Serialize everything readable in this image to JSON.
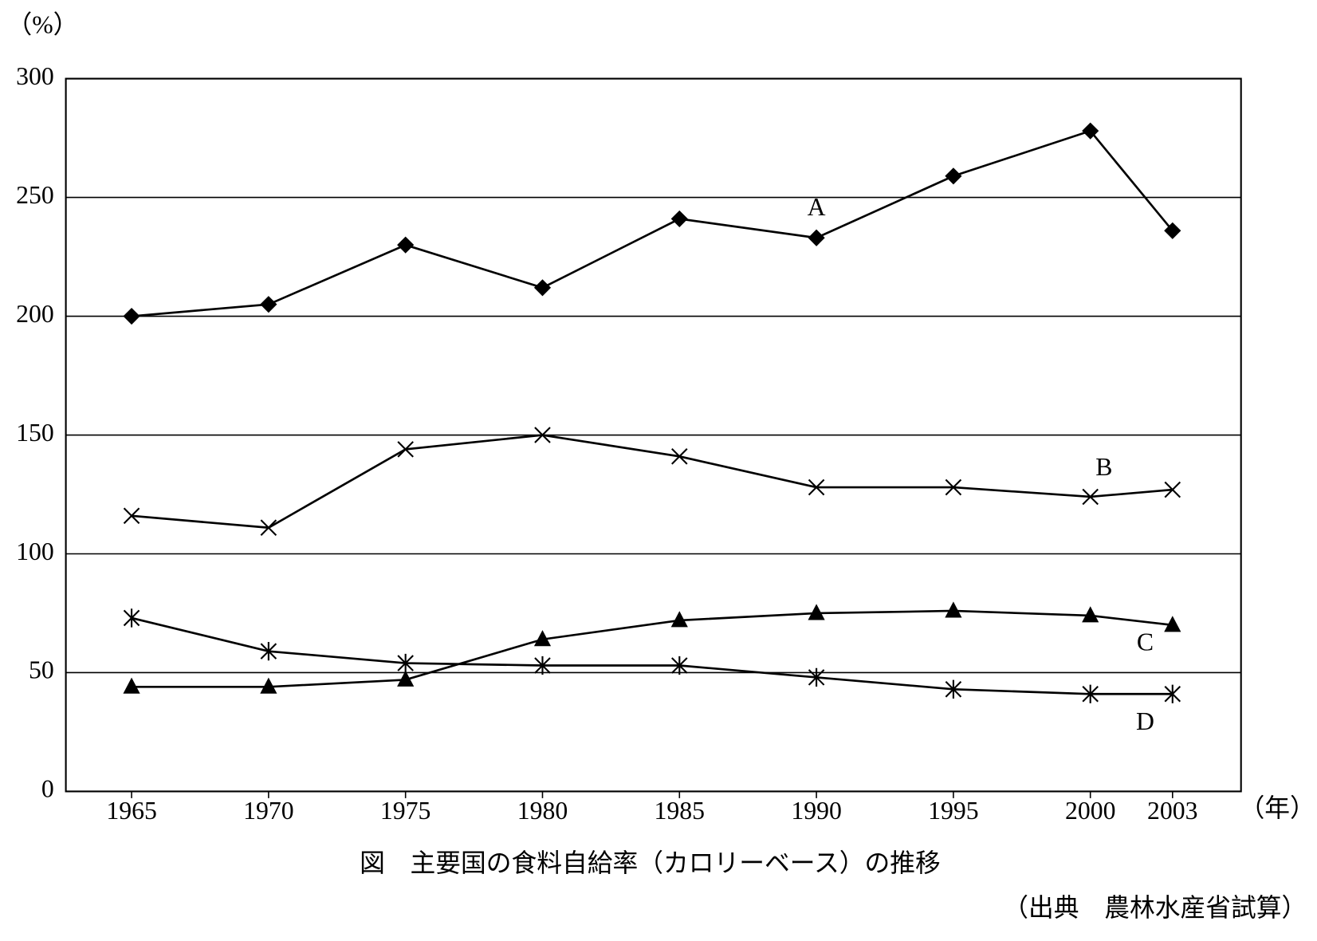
{
  "chart_data": {
    "type": "line",
    "title": "図　主要国の食料自給率（カロリーベース）の推移",
    "source": "（出典　農林水産省試算）",
    "y_label": "（%）",
    "x_label": "（年）",
    "x": [
      1965,
      1970,
      1975,
      1980,
      1985,
      1990,
      1995,
      2000,
      2003
    ],
    "series": [
      {
        "name": "A",
        "color": "#000000",
        "marker": "diamond",
        "values": [
          200,
          205,
          230,
          212,
          241,
          233,
          259,
          278,
          236
        ]
      },
      {
        "name": "B",
        "color": "#000000",
        "marker": "x",
        "values": [
          116,
          111,
          144,
          150,
          141,
          128,
          128,
          124,
          127
        ]
      },
      {
        "name": "C",
        "color": "#000000",
        "marker": "triangle",
        "values": [
          44,
          44,
          47,
          64,
          72,
          75,
          76,
          74,
          70
        ]
      },
      {
        "name": "D",
        "color": "#000000",
        "marker": "asterisk",
        "values": [
          73,
          59,
          54,
          53,
          53,
          48,
          43,
          41,
          41
        ]
      }
    ],
    "xlim": [
      1962.6,
      2005.5
    ],
    "xticks": [
      1965,
      1970,
      1975,
      1980,
      1985,
      1990,
      1995,
      2000,
      2003
    ],
    "ylim": [
      0,
      300
    ],
    "yticks": [
      0,
      50,
      100,
      150,
      200,
      250,
      300
    ],
    "grid": true
  }
}
